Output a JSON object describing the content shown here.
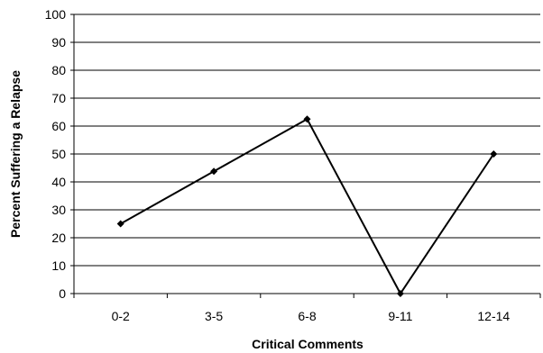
{
  "chart_data": {
    "type": "line",
    "title": "",
    "xlabel": "Critical Comments",
    "ylabel": "Percent Suffering a Relapse",
    "categories": [
      "0-2",
      "3-5",
      "6-8",
      "9-11",
      "12-14"
    ],
    "series": [
      {
        "values": [
          25,
          43.8,
          62.5,
          0,
          50
        ]
      }
    ],
    "ylim": [
      0,
      100
    ],
    "yticks": [
      0,
      10,
      20,
      30,
      40,
      50,
      60,
      70,
      80,
      90,
      100
    ],
    "grid": "horizontal",
    "legend": "none",
    "colors": {
      "line": "#000000",
      "grid": "#000000",
      "background": "#ffffff"
    },
    "marker": "diamond"
  }
}
